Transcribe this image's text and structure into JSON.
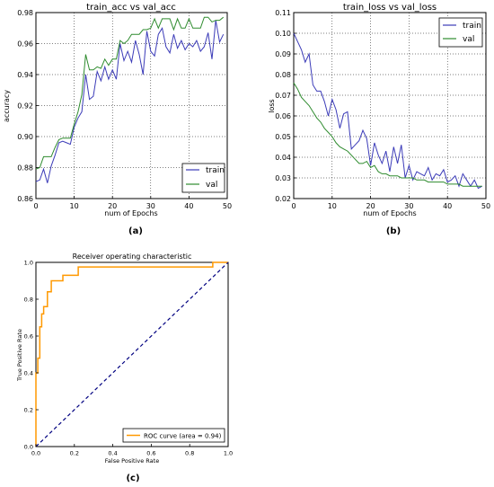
{
  "panels": [
    {
      "id": "a",
      "caption": "(a)",
      "title": "train_acc vs val_acc",
      "xlabel": "num of Epochs",
      "ylabel": "accuracy",
      "xlim": [
        0,
        50
      ],
      "ylim": [
        0.86,
        0.98
      ],
      "xticks": [
        "0",
        "10",
        "20",
        "30",
        "40",
        "50"
      ],
      "yticks": [
        "0.86",
        "0.88",
        "0.90",
        "0.92",
        "0.94",
        "0.96",
        "0.98"
      ],
      "legend": {
        "position": "lower-right",
        "entries": [
          "train",
          "val"
        ]
      }
    },
    {
      "id": "b",
      "caption": "(b)",
      "title": "train_loss vs val_loss",
      "xlabel": "num of Epochs",
      "ylabel": "loss",
      "xlim": [
        0,
        50
      ],
      "ylim": [
        0.02,
        0.11
      ],
      "xticks": [
        "0",
        "10",
        "20",
        "30",
        "40",
        "50"
      ],
      "yticks": [
        "0.02",
        "0.03",
        "0.04",
        "0.05",
        "0.06",
        "0.07",
        "0.08",
        "0.09",
        "0.10",
        "0.11"
      ],
      "legend": {
        "position": "top-right",
        "entries": [
          "train",
          "val"
        ]
      }
    },
    {
      "id": "c",
      "caption": "(c)",
      "title": "Receiver operating characteristic",
      "xlabel": "False Positive Rate",
      "ylabel": "True Positive Rate",
      "xlim": [
        0,
        1
      ],
      "ylim": [
        0,
        1
      ],
      "xticks": [
        "0.0",
        "0.2",
        "0.4",
        "0.6",
        "0.8",
        "1.0"
      ],
      "yticks": [
        "0.0",
        "0.2",
        "0.4",
        "0.6",
        "0.8",
        "1.0"
      ],
      "legend": {
        "position": "lower-right",
        "entries": [
          "ROC curve (area = 0.94)"
        ]
      }
    }
  ],
  "colors": {
    "train": "#3b3bb8",
    "val": "#2e8b2e",
    "roc": "#ff9900",
    "diag": "#000080"
  },
  "chart_data": [
    {
      "type": "line",
      "x": [
        0,
        1,
        2,
        3,
        4,
        5,
        6,
        7,
        8,
        9,
        10,
        11,
        12,
        13,
        14,
        15,
        16,
        17,
        18,
        19,
        20,
        21,
        22,
        23,
        24,
        25,
        26,
        27,
        28,
        29,
        30,
        31,
        32,
        33,
        34,
        35,
        36,
        37,
        38,
        39,
        40,
        41,
        42,
        43,
        44,
        45,
        46,
        47,
        48,
        49
      ],
      "series": [
        {
          "name": "train",
          "values": [
            0.871,
            0.872,
            0.879,
            0.87,
            0.881,
            0.888,
            0.896,
            0.897,
            0.896,
            0.895,
            0.906,
            0.912,
            0.916,
            0.94,
            0.924,
            0.926,
            0.942,
            0.936,
            0.945,
            0.937,
            0.943,
            0.937,
            0.96,
            0.949,
            0.955,
            0.948,
            0.962,
            0.953,
            0.94,
            0.968,
            0.955,
            0.952,
            0.966,
            0.97,
            0.958,
            0.954,
            0.966,
            0.957,
            0.962,
            0.956,
            0.96,
            0.958,
            0.962,
            0.955,
            0.958,
            0.967,
            0.95,
            0.975,
            0.961,
            0.966
          ]
        },
        {
          "name": "val",
          "values": [
            0.879,
            0.88,
            0.887,
            0.887,
            0.887,
            0.893,
            0.898,
            0.899,
            0.899,
            0.899,
            0.908,
            0.916,
            0.927,
            0.953,
            0.943,
            0.943,
            0.945,
            0.944,
            0.95,
            0.946,
            0.95,
            0.95,
            0.962,
            0.96,
            0.962,
            0.966,
            0.966,
            0.966,
            0.969,
            0.969,
            0.97,
            0.976,
            0.97,
            0.976,
            0.976,
            0.976,
            0.969,
            0.976,
            0.97,
            0.97,
            0.976,
            0.97,
            0.97,
            0.97,
            0.977,
            0.977,
            0.974,
            0.975,
            0.975,
            0.977
          ]
        }
      ]
    },
    {
      "type": "line",
      "x": [
        0,
        1,
        2,
        3,
        4,
        5,
        6,
        7,
        8,
        9,
        10,
        11,
        12,
        13,
        14,
        15,
        16,
        17,
        18,
        19,
        20,
        21,
        22,
        23,
        24,
        25,
        26,
        27,
        28,
        29,
        30,
        31,
        32,
        33,
        34,
        35,
        36,
        37,
        38,
        39,
        40,
        41,
        42,
        43,
        44,
        45,
        46,
        47,
        48,
        49
      ],
      "series": [
        {
          "name": "train",
          "values": [
            0.1,
            0.096,
            0.092,
            0.086,
            0.09,
            0.075,
            0.072,
            0.072,
            0.067,
            0.06,
            0.068,
            0.063,
            0.054,
            0.061,
            0.062,
            0.044,
            0.046,
            0.048,
            0.053,
            0.049,
            0.036,
            0.047,
            0.041,
            0.037,
            0.043,
            0.033,
            0.045,
            0.037,
            0.046,
            0.03,
            0.036,
            0.029,
            0.033,
            0.032,
            0.031,
            0.035,
            0.029,
            0.032,
            0.031,
            0.034,
            0.028,
            0.029,
            0.031,
            0.026,
            0.032,
            0.029,
            0.026,
            0.029,
            0.025,
            0.026
          ]
        },
        {
          "name": "val",
          "values": [
            0.076,
            0.073,
            0.069,
            0.067,
            0.065,
            0.062,
            0.059,
            0.057,
            0.054,
            0.052,
            0.05,
            0.047,
            0.045,
            0.044,
            0.043,
            0.041,
            0.039,
            0.037,
            0.037,
            0.038,
            0.035,
            0.036,
            0.033,
            0.032,
            0.032,
            0.031,
            0.031,
            0.031,
            0.03,
            0.03,
            0.03,
            0.03,
            0.029,
            0.029,
            0.029,
            0.028,
            0.028,
            0.028,
            0.028,
            0.028,
            0.027,
            0.027,
            0.027,
            0.027,
            0.026,
            0.026,
            0.026,
            0.026,
            0.026,
            0.026
          ]
        }
      ]
    },
    {
      "type": "line",
      "series": [
        {
          "name": "ROC curve (area = 0.94)",
          "x": [
            0,
            0,
            0.01,
            0.01,
            0.02,
            0.02,
            0.03,
            0.03,
            0.04,
            0.04,
            0.06,
            0.06,
            0.08,
            0.08,
            0.14,
            0.14,
            0.22,
            0.22,
            0.92,
            0.92,
            1.0
          ],
          "y": [
            0,
            0.4,
            0.4,
            0.48,
            0.48,
            0.65,
            0.65,
            0.72,
            0.72,
            0.76,
            0.76,
            0.84,
            0.84,
            0.9,
            0.9,
            0.93,
            0.93,
            0.975,
            0.975,
            1.0,
            1.0
          ]
        },
        {
          "name": "",
          "style": "dashed",
          "x": [
            0,
            1
          ],
          "y": [
            0,
            1
          ]
        }
      ]
    }
  ]
}
